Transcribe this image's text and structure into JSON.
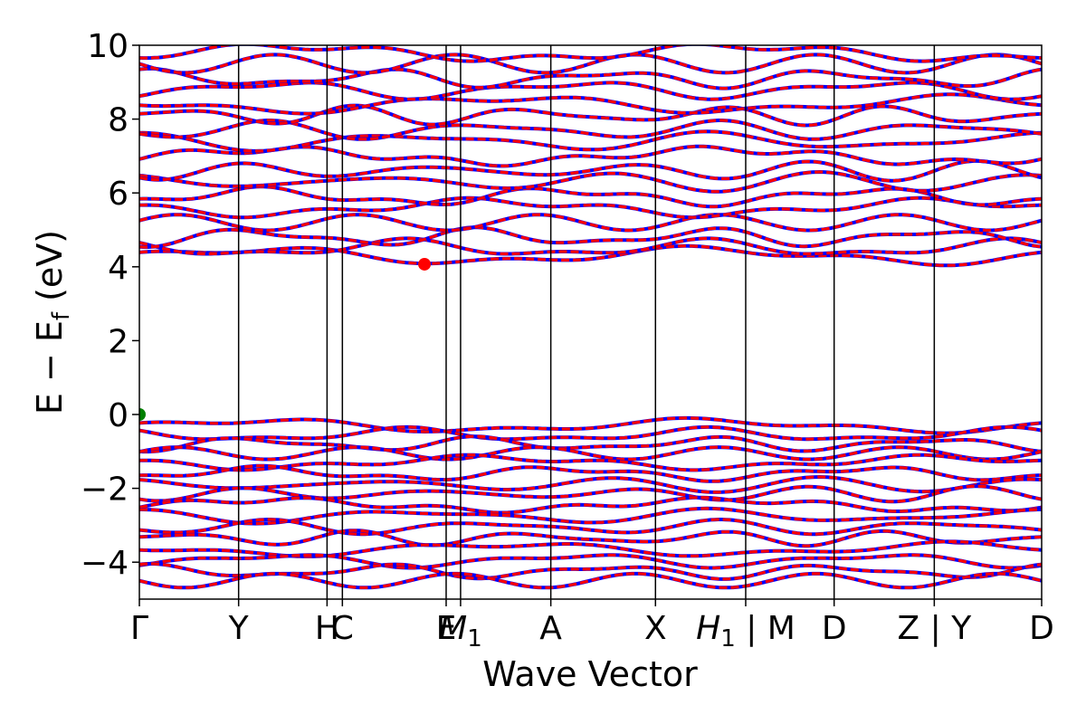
{
  "chart_data": {
    "type": "line",
    "title": "",
    "xlabel": "Wave Vector",
    "ylabel_main": "E − E",
    "ylabel_sub": "f",
    "ylabel_unit": " (eV)",
    "ylim": [
      -5,
      10
    ],
    "yticks": [
      {
        "value": -4,
        "label": "−4"
      },
      {
        "value": -2,
        "label": "−2"
      },
      {
        "value": 0,
        "label": "0"
      },
      {
        "value": 2,
        "label": "2"
      },
      {
        "value": 4,
        "label": "4"
      },
      {
        "value": 6,
        "label": "6"
      },
      {
        "value": 8,
        "label": "8"
      },
      {
        "value": 10,
        "label": "10"
      }
    ],
    "xlim": [
      0,
      1
    ],
    "kpoints": [
      {
        "pos": 0.0,
        "label": "Γ"
      },
      {
        "pos": 0.11,
        "label": "Y"
      },
      {
        "pos": 0.208,
        "label": "H"
      },
      {
        "pos": 0.225,
        "label": "C"
      },
      {
        "pos": 0.34,
        "label": "E"
      },
      {
        "pos": 0.356,
        "label": "M1"
      },
      {
        "pos": 0.456,
        "label": "A"
      },
      {
        "pos": 0.572,
        "label": "X"
      },
      {
        "pos": 0.672,
        "label": "H1 | M"
      },
      {
        "pos": 0.77,
        "label": "D"
      },
      {
        "pos": 0.881,
        "label": "Z | Y"
      },
      {
        "pos": 1.0,
        "label": "D"
      }
    ],
    "grid": false,
    "series_colors": {
      "spin_up": "#ff0000",
      "spin_down": "#0000ff"
    },
    "conduction_band_bases": [
      4.3,
      4.5,
      4.8,
      5.2,
      5.6,
      5.9,
      6.3,
      6.6,
      7.0,
      7.4,
      7.7,
      8.1,
      8.4,
      8.8,
      9.1,
      9.5,
      9.8
    ],
    "valence_band_bases": [
      -0.3,
      -0.55,
      -0.8,
      -1.05,
      -1.3,
      -1.6,
      -1.9,
      -2.15,
      -2.45,
      -2.75,
      -3.05,
      -3.35,
      -3.65,
      -3.95,
      -4.25,
      -4.5
    ],
    "markers": [
      {
        "name": "cbm",
        "x": 0.316,
        "y": 4.07,
        "color": "#ff0000"
      },
      {
        "name": "vbm",
        "x": 0.0,
        "y": 0.0,
        "color": "#008000"
      }
    ]
  }
}
